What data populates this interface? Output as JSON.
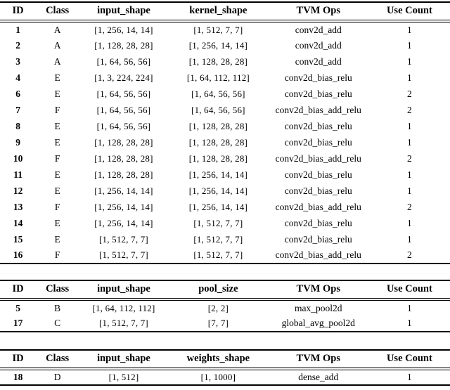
{
  "page": {
    "background_color": "#ffffff",
    "text_color": "#000000",
    "rule_color": "#000000"
  },
  "tables": [
    {
      "title": "conv-ops-table",
      "columns": [
        "ID",
        "Class",
        "input_shape",
        "kernel_shape",
        "TVM Ops",
        "Use Count"
      ],
      "rows": [
        [
          "1",
          "A",
          "[1, 256, 14, 14]",
          "[1, 512, 7, 7]",
          "conv2d_add",
          "1"
        ],
        [
          "2",
          "A",
          "[1, 128, 28, 28]",
          "[1, 256, 14, 14]",
          "conv2d_add",
          "1"
        ],
        [
          "3",
          "A",
          "[1, 64, 56, 56]",
          "[1, 128, 28, 28]",
          "conv2d_add",
          "1"
        ],
        [
          "4",
          "E",
          "[1, 3, 224, 224]",
          "[1, 64, 112, 112]",
          "conv2d_bias_relu",
          "1"
        ],
        [
          "6",
          "E",
          "[1, 64, 56, 56]",
          "[1, 64, 56, 56]",
          "conv2d_bias_relu",
          "2"
        ],
        [
          "7",
          "F",
          "[1, 64, 56, 56]",
          "[1, 64, 56, 56]",
          "conv2d_bias_add_relu",
          "2"
        ],
        [
          "8",
          "E",
          "[1, 64, 56, 56]",
          "[1, 128, 28, 28]",
          "conv2d_bias_relu",
          "1"
        ],
        [
          "9",
          "E",
          "[1, 128, 28, 28]",
          "[1, 128, 28, 28]",
          "conv2d_bias_relu",
          "1"
        ],
        [
          "10",
          "F",
          "[1, 128, 28, 28]",
          "[1, 128, 28, 28]",
          "conv2d_bias_add_relu",
          "2"
        ],
        [
          "11",
          "E",
          "[1, 128, 28, 28]",
          "[1, 256, 14, 14]",
          "conv2d_bias_relu",
          "1"
        ],
        [
          "12",
          "E",
          "[1, 256, 14, 14]",
          "[1, 256, 14, 14]",
          "conv2d_bias_relu",
          "1"
        ],
        [
          "13",
          "F",
          "[1, 256, 14, 14]",
          "[1, 256, 14, 14]",
          "conv2d_bias_add_relu",
          "2"
        ],
        [
          "14",
          "E",
          "[1, 256, 14, 14]",
          "[1, 512, 7, 7]",
          "conv2d_bias_relu",
          "1"
        ],
        [
          "15",
          "E",
          "[1, 512, 7, 7]",
          "[1, 512, 7, 7]",
          "conv2d_bias_relu",
          "1"
        ],
        [
          "16",
          "F",
          "[1, 512, 7, 7]",
          "[1, 512, 7, 7]",
          "conv2d_bias_add_relu",
          "2"
        ]
      ]
    },
    {
      "title": "pool-ops-table",
      "columns": [
        "ID",
        "Class",
        "input_shape",
        "pool_size",
        "TVM Ops",
        "Use Count"
      ],
      "rows": [
        [
          "5",
          "B",
          "[1, 64, 112, 112]",
          "[2, 2]",
          "max_pool2d",
          "1"
        ],
        [
          "17",
          "C",
          "[1, 512, 7, 7]",
          "[7, 7]",
          "global_avg_pool2d",
          "1"
        ]
      ]
    },
    {
      "title": "dense-ops-table",
      "columns": [
        "ID",
        "Class",
        "input_shape",
        "weights_shape",
        "TVM Ops",
        "Use Count"
      ],
      "rows": [
        [
          "18",
          "D",
          "[1, 512]",
          "[1, 1000]",
          "dense_add",
          "1"
        ]
      ]
    }
  ]
}
